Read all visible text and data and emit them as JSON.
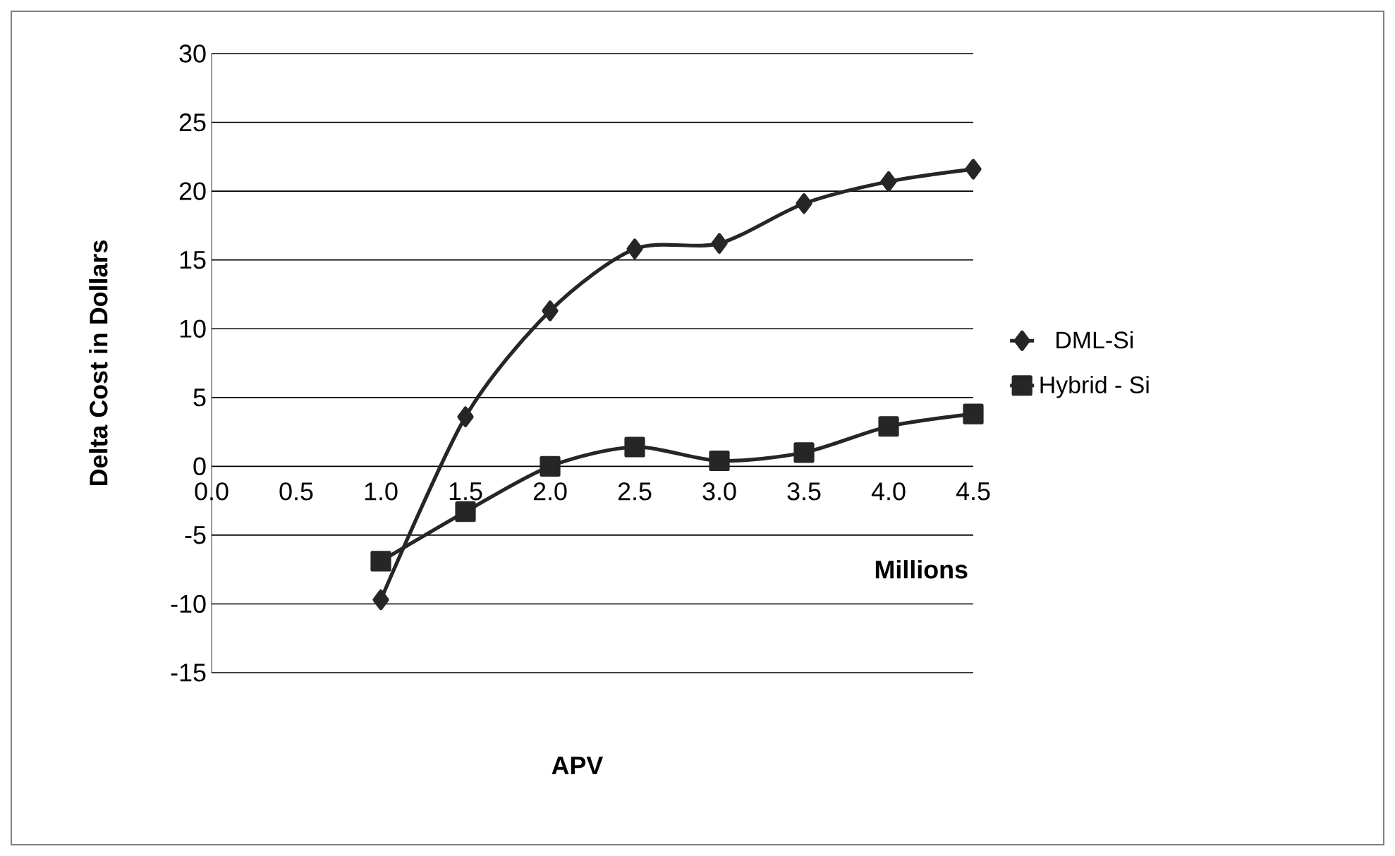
{
  "chart_data": {
    "type": "line",
    "xlabel": "APV",
    "ylabel": "Delta Cost in Dollars",
    "annotations": [
      "Millions"
    ],
    "x": [
      1.0,
      1.5,
      2.0,
      2.5,
      3.0,
      3.5,
      4.0,
      4.5
    ],
    "series": [
      {
        "name": "DML-Si",
        "color": "#262626",
        "marker": "diamond",
        "values": [
          -9.7,
          3.6,
          11.3,
          15.8,
          16.2,
          19.1,
          20.7,
          21.6
        ]
      },
      {
        "name": "Hybrid - Si",
        "color": "#262626",
        "marker": "square",
        "values": [
          -6.9,
          -3.3,
          0,
          1.4,
          0.4,
          1.0,
          2.9,
          3.8
        ]
      }
    ],
    "xlim": [
      0,
      4.5
    ],
    "xticks": [
      {
        "value": 0,
        "label": "0.0"
      },
      {
        "value": 0.5,
        "label": "0.5"
      },
      {
        "value": 1,
        "label": "1.0"
      },
      {
        "value": 1.5,
        "label": "1.5"
      },
      {
        "value": 2,
        "label": "2.0"
      },
      {
        "value": 2.5,
        "label": "2.5"
      },
      {
        "value": 3,
        "label": "3.0"
      },
      {
        "value": 3.5,
        "label": "3.5"
      },
      {
        "value": 4,
        "label": "4.0"
      },
      {
        "value": 4.5,
        "label": "4.5"
      }
    ],
    "ylim": [
      -15,
      30
    ],
    "yticks": [
      -15,
      -10,
      -5,
      0,
      5,
      10,
      15,
      20,
      25,
      30
    ],
    "grid": "y",
    "legend": "right",
    "line_style": "solid"
  }
}
